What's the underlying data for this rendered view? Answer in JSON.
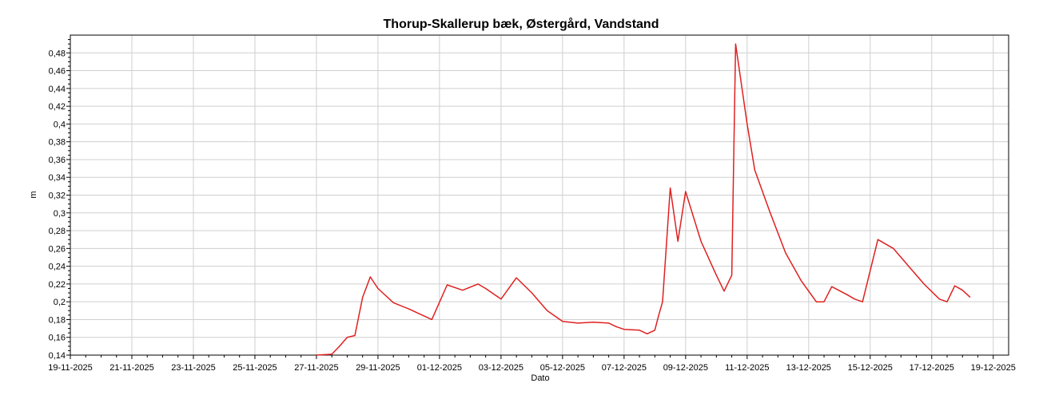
{
  "chart_data": {
    "type": "line",
    "title": "Thorup-Skallerup bæk, Østergård, Vandstand",
    "xlabel": "Dato",
    "ylabel": "m",
    "x_tick_labels": [
      "19-11-2025",
      "21-11-2025",
      "23-11-2025",
      "25-11-2025",
      "27-11-2025",
      "29-11-2025",
      "01-12-2025",
      "03-12-2025",
      "05-12-2025",
      "07-12-2025",
      "09-12-2025",
      "11-12-2025",
      "13-12-2025",
      "15-12-2025",
      "17-12-2025",
      "19-12-2025"
    ],
    "y_tick_labels": [
      "0,14",
      "0,16",
      "0,18",
      "0,2",
      "0,22",
      "0,24",
      "0,26",
      "0,28",
      "0,3",
      "0,32",
      "0,34",
      "0,36",
      "0,38",
      "0,4",
      "0,42",
      "0,44",
      "0,46",
      "0,48"
    ],
    "xlim": [
      "2025-11-19",
      "2025-12-19 12:00"
    ],
    "ylim": [
      0.14,
      0.5
    ],
    "grid": true,
    "series": [
      {
        "color": "#e02020",
        "x": [
          "2025-11-27 00:00",
          "2025-11-27 12:00",
          "2025-11-27 18:00",
          "2025-11-28 00:00",
          "2025-11-28 06:00",
          "2025-11-28 12:00",
          "2025-11-28 18:00",
          "2025-11-29 00:00",
          "2025-11-29 12:00",
          "2025-11-30 00:00",
          "2025-11-30 18:00",
          "2025-12-01 06:00",
          "2025-12-01 18:00",
          "2025-12-02 06:00",
          "2025-12-02 12:00",
          "2025-12-03 00:00",
          "2025-12-03 12:00",
          "2025-12-04 00:00",
          "2025-12-04 12:00",
          "2025-12-05 00:00",
          "2025-12-05 12:00",
          "2025-12-06 00:00",
          "2025-12-06 12:00",
          "2025-12-06 18:00",
          "2025-12-07 00:00",
          "2025-12-07 12:00",
          "2025-12-07 18:00",
          "2025-12-08 00:00",
          "2025-12-08 03:00",
          "2025-12-08 06:00",
          "2025-12-08 12:00",
          "2025-12-08 18:00",
          "2025-12-09 00:00",
          "2025-12-09 12:00",
          "2025-12-10 00:00",
          "2025-12-10 06:00",
          "2025-12-10 12:00",
          "2025-12-10 15:00",
          "2025-12-11 00:00",
          "2025-12-11 06:00",
          "2025-12-11 18:00",
          "2025-12-12 06:00",
          "2025-12-12 18:00",
          "2025-12-13 06:00",
          "2025-12-13 12:00",
          "2025-12-13 18:00",
          "2025-12-14 06:00",
          "2025-12-14 12:00",
          "2025-12-14 18:00",
          "2025-12-15 06:00",
          "2025-12-15 18:00",
          "2025-12-16 06:00",
          "2025-12-16 18:00",
          "2025-12-17 06:00",
          "2025-12-17 12:00",
          "2025-12-17 18:00",
          "2025-12-18 00:00",
          "2025-12-18 06:00"
        ],
        "y": [
          0.14,
          0.141,
          0.15,
          0.16,
          0.162,
          0.205,
          0.228,
          0.215,
          0.199,
          0.192,
          0.18,
          0.219,
          0.213,
          0.22,
          0.215,
          0.203,
          0.227,
          0.21,
          0.19,
          0.178,
          0.176,
          0.177,
          0.176,
          0.172,
          0.169,
          0.168,
          0.164,
          0.168,
          0.185,
          0.2,
          0.328,
          0.268,
          0.324,
          0.268,
          0.23,
          0.212,
          0.23,
          0.49,
          0.4,
          0.348,
          0.3,
          0.255,
          0.224,
          0.2,
          0.2,
          0.217,
          0.208,
          0.203,
          0.2,
          0.27,
          0.26,
          0.24,
          0.22,
          0.203,
          0.2,
          0.218,
          0.213,
          0.205
        ]
      }
    ]
  }
}
